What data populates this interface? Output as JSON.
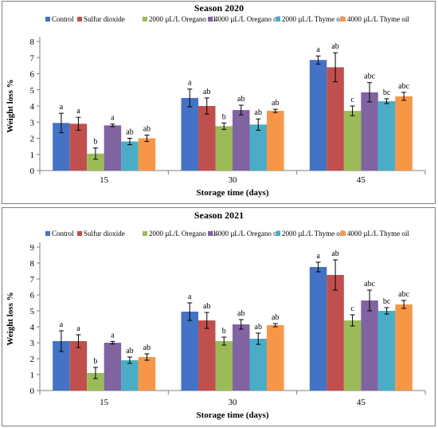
{
  "chart_data": [
    {
      "type": "bar",
      "title": "Season 2020",
      "xlabel": "Storage time (days)",
      "ylabel": "Weight loss %",
      "ylim": [
        0,
        8
      ],
      "yticks": [
        0,
        1,
        2,
        3,
        4,
        5,
        6,
        7,
        8
      ],
      "legend_position": "top",
      "categories": [
        "15",
        "30",
        "45"
      ],
      "series": [
        {
          "name": "Control",
          "color": "#4472C4",
          "values": [
            2.95,
            4.5,
            6.85
          ],
          "errors": [
            0.6,
            0.55,
            0.25
          ],
          "letters": [
            "a",
            "a",
            "a"
          ]
        },
        {
          "name": "Sulfur dioxide",
          "color": "#C0504D",
          "values": [
            2.9,
            4.0,
            6.4
          ],
          "errors": [
            0.4,
            0.5,
            0.9
          ],
          "letters": [
            "a",
            "ab",
            "ab"
          ]
        },
        {
          "name": "2000 µL/L Oregano oil",
          "color": "#9BBB59",
          "values": [
            1.05,
            2.75,
            3.7
          ],
          "errors": [
            0.35,
            0.2,
            0.3
          ],
          "letters": [
            "b",
            "b",
            "c"
          ]
        },
        {
          "name": "4000 µL/L Oregano oil",
          "color": "#8064A2",
          "values": [
            2.8,
            3.75,
            4.85
          ],
          "errors": [
            0.08,
            0.3,
            0.6
          ],
          "letters": [
            "a",
            "ab",
            "abc"
          ]
        },
        {
          "name": "2000 µL/L Thyme oil",
          "color": "#4BACC6",
          "values": [
            1.8,
            2.85,
            4.3
          ],
          "errors": [
            0.2,
            0.35,
            0.15
          ],
          "letters": [
            "ab",
            "ab",
            "bc"
          ]
        },
        {
          "name": "4000 µL/L Thyme oil",
          "color": "#F79646",
          "values": [
            2.0,
            3.7,
            4.6
          ],
          "errors": [
            0.2,
            0.1,
            0.25
          ],
          "letters": [
            "ab",
            "ab",
            "abc"
          ]
        }
      ]
    },
    {
      "type": "bar",
      "title": "Season 2021",
      "xlabel": "Storage time (days)",
      "ylabel": "Weight loss %",
      "ylim": [
        0,
        9
      ],
      "yticks": [
        0,
        1,
        2,
        3,
        4,
        5,
        6,
        7,
        8,
        9
      ],
      "legend_position": "top",
      "categories": [
        "15",
        "30",
        "45"
      ],
      "series": [
        {
          "name": "Control",
          "color": "#4472C4",
          "values": [
            3.1,
            4.95,
            7.75
          ],
          "errors": [
            0.65,
            0.55,
            0.3
          ],
          "letters": [
            "a",
            "a",
            "a"
          ]
        },
        {
          "name": "Sulfur dioxide",
          "color": "#C0504D",
          "values": [
            3.1,
            4.4,
            7.25
          ],
          "errors": [
            0.4,
            0.5,
            0.95
          ],
          "letters": [
            "a",
            "ab",
            "ab"
          ]
        },
        {
          "name": "2000 µL/L Oregano oil",
          "color": "#9BBB59",
          "values": [
            1.1,
            3.1,
            4.4
          ],
          "errors": [
            0.35,
            0.25,
            0.35
          ],
          "letters": [
            "b",
            "b",
            "c"
          ]
        },
        {
          "name": "4000 µL/L Oregano oil",
          "color": "#8064A2",
          "values": [
            3.0,
            4.15,
            5.65
          ],
          "errors": [
            0.08,
            0.3,
            0.65
          ],
          "letters": [
            "a",
            "ab",
            "abc"
          ]
        },
        {
          "name": "2000 µL/L Thyme oil",
          "color": "#4BACC6",
          "values": [
            1.9,
            3.25,
            5.0
          ],
          "errors": [
            0.2,
            0.35,
            0.2
          ],
          "letters": [
            "ab",
            "ab",
            "bc"
          ]
        },
        {
          "name": "4000 µL/L Thyme oil",
          "color": "#F79646",
          "values": [
            2.1,
            4.1,
            5.4
          ],
          "errors": [
            0.2,
            0.1,
            0.25
          ],
          "letters": [
            "ab",
            "ab",
            "abc"
          ]
        }
      ]
    }
  ]
}
